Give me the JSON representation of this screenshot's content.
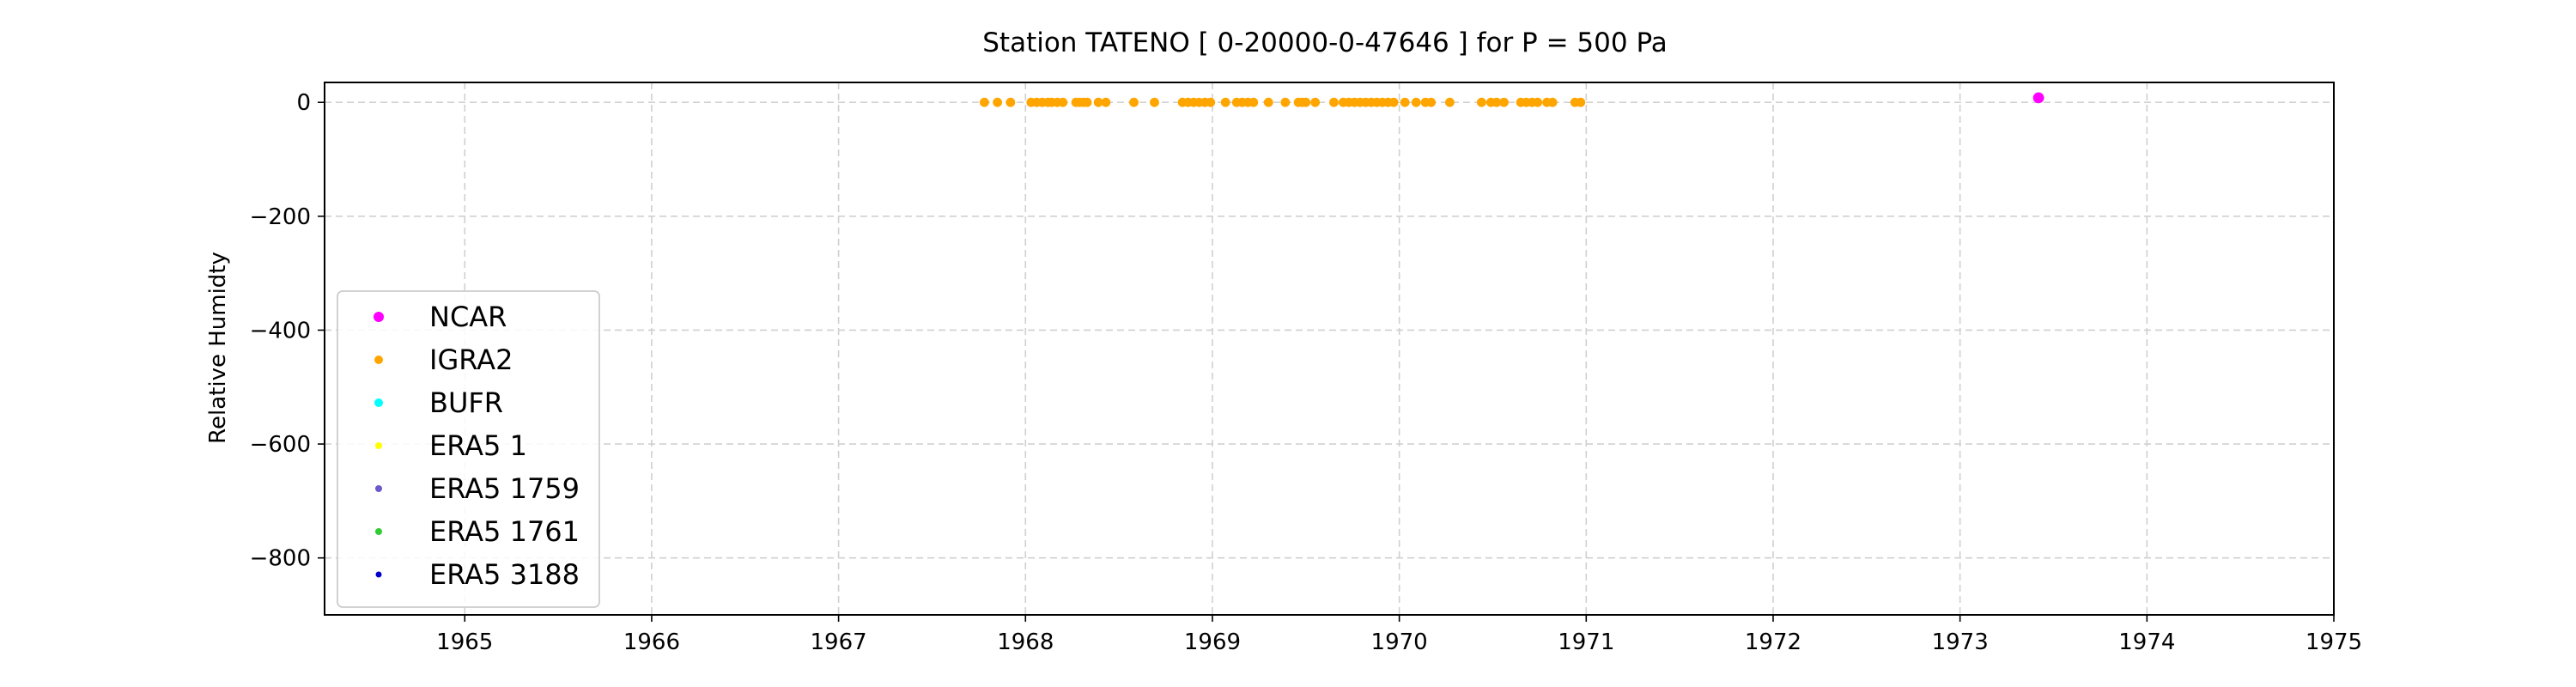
{
  "chart_data": {
    "type": "scatter",
    "title": "Station  TATENO [ 0-20000-0-47646 ]  for P = 500 Pa",
    "xlabel": "",
    "ylabel": "Relative Humidty",
    "xlim": [
      1964.25,
      1975.0
    ],
    "ylim": [
      -900,
      35
    ],
    "x_ticks": [
      1965,
      1966,
      1967,
      1968,
      1969,
      1970,
      1971,
      1972,
      1973,
      1974,
      1975
    ],
    "y_ticks": [
      0,
      -200,
      -400,
      -600,
      -800
    ],
    "y_tick_labels": [
      "0",
      "−200",
      "−400",
      "−600",
      "−800"
    ],
    "grid": true,
    "legend_position": "lower-left",
    "series": [
      {
        "name": "NCAR",
        "color": "#ff00ff",
        "marker_size": 5,
        "x": [
          1973.42
        ],
        "y": [
          8
        ]
      },
      {
        "name": "IGRA2",
        "color": "#ffa500",
        "marker_size": 4,
        "x": [
          1967.78,
          1967.85,
          1967.92,
          1968.03,
          1968.06,
          1968.09,
          1968.12,
          1968.14,
          1968.17,
          1968.2,
          1968.27,
          1968.29,
          1968.31,
          1968.33,
          1968.39,
          1968.43,
          1968.58,
          1968.69,
          1968.84,
          1968.87,
          1968.9,
          1968.93,
          1968.96,
          1968.99,
          1969.07,
          1969.13,
          1969.16,
          1969.19,
          1969.22,
          1969.3,
          1969.39,
          1969.46,
          1969.48,
          1969.5,
          1969.55,
          1969.65,
          1969.7,
          1969.73,
          1969.76,
          1969.79,
          1969.82,
          1969.85,
          1969.88,
          1969.91,
          1969.94,
          1969.97,
          1970.03,
          1970.09,
          1970.14,
          1970.17,
          1970.27,
          1970.44,
          1970.49,
          1970.52,
          1970.56,
          1970.65,
          1970.68,
          1970.71,
          1970.74,
          1970.79,
          1970.82,
          1970.94,
          1970.97
        ],
        "y": [
          0,
          0,
          0,
          0,
          0,
          0,
          0,
          0,
          0,
          0,
          0,
          0,
          0,
          0,
          0,
          0,
          0,
          0,
          0,
          0,
          0,
          0,
          0,
          0,
          0,
          0,
          0,
          0,
          0,
          0,
          0,
          0,
          0,
          0,
          0,
          0,
          0,
          0,
          0,
          0,
          0,
          0,
          0,
          0,
          0,
          0,
          0,
          0,
          0,
          0,
          0,
          0,
          0,
          0,
          0,
          0,
          0,
          0,
          0,
          0,
          0,
          0,
          0
        ]
      },
      {
        "name": "BUFR",
        "color": "#00ffff",
        "marker_size": 4,
        "x": [],
        "y": []
      },
      {
        "name": "ERA5 1",
        "color": "#ffff00",
        "marker_size": 3,
        "x": [],
        "y": []
      },
      {
        "name": "ERA5 1759",
        "color": "#6a5acd",
        "marker_size": 3,
        "x": [],
        "y": []
      },
      {
        "name": "ERA5 1761",
        "color": "#32cd32",
        "marker_size": 3,
        "x": [],
        "y": []
      },
      {
        "name": "ERA5 3188",
        "color": "#0000cd",
        "marker_size": 2.5,
        "x": [],
        "y": []
      }
    ]
  }
}
